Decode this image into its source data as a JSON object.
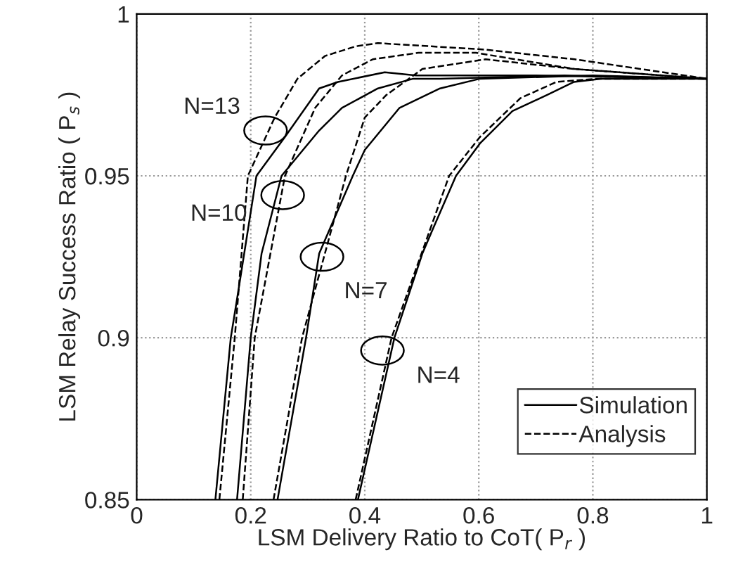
{
  "chart_data": {
    "type": "line",
    "xlabel": "LSM Delivery Ratio to CoT( P$_{r}$ )",
    "ylabel": "LSM Relay Success Ratio ( P$_{s}$ )",
    "xlim": [
      0,
      1
    ],
    "ylim": [
      0.85,
      1
    ],
    "xticks": [
      0,
      0.2,
      0.4,
      0.6,
      0.8,
      1
    ],
    "yticks": [
      0.85,
      0.9,
      0.95,
      1
    ],
    "grid": true,
    "legend": "bottom right",
    "marker": "none",
    "series": [
      {
        "name": "Simulation",
        "color": "#000000",
        "line_style": "solid",
        "x": [
          0.138,
          0.165,
          0.176,
          0.21,
          0.26,
          0.32,
          0.353,
          0.435,
          0.49,
          0.7,
          1.0
        ],
        "values": [
          0.85,
          0.9,
          0.912,
          0.95,
          0.962,
          0.977,
          0.979,
          0.982,
          0.981,
          0.981,
          0.98
        ]
      },
      {
        "name": "Analysis",
        "color": "#000000",
        "line_style": "dashed",
        "x": [
          0.145,
          0.172,
          0.195,
          0.242,
          0.282,
          0.33,
          0.384,
          0.423,
          0.61,
          0.768,
          1.0
        ],
        "values": [
          0.85,
          0.9,
          0.95,
          0.968,
          0.98,
          0.987,
          0.99,
          0.991,
          0.989,
          0.986,
          0.98
        ]
      },
      {
        "color": "#000000",
        "line_style": "solid",
        "x": [
          0.176,
          0.2,
          0.219,
          0.254,
          0.32,
          0.36,
          0.423,
          0.485,
          0.532,
          0.75,
          1.0
        ],
        "values": [
          0.85,
          0.9,
          0.926,
          0.95,
          0.964,
          0.971,
          0.977,
          0.98,
          0.98,
          0.981,
          0.98
        ]
      },
      {
        "color": "#000000",
        "line_style": "dashed",
        "x": [
          0.186,
          0.207,
          0.26,
          0.313,
          0.36,
          0.414,
          0.494,
          0.595,
          0.768,
          1.0
        ],
        "values": [
          0.85,
          0.9,
          0.95,
          0.971,
          0.981,
          0.986,
          0.988,
          0.988,
          0.983,
          0.98
        ]
      },
      {
        "color": "#000000",
        "line_style": "solid",
        "x": [
          0.247,
          0.297,
          0.32,
          0.379,
          0.4,
          0.461,
          0.532,
          0.602,
          0.8,
          1.0
        ],
        "values": [
          0.85,
          0.9,
          0.926,
          0.95,
          0.958,
          0.971,
          0.977,
          0.98,
          0.981,
          0.98
        ]
      },
      {
        "color": "#000000",
        "line_style": "dashed",
        "x": [
          0.24,
          0.29,
          0.367,
          0.4,
          0.438,
          0.501,
          0.612,
          0.768,
          1.0
        ],
        "values": [
          0.85,
          0.9,
          0.95,
          0.968,
          0.975,
          0.983,
          0.986,
          0.983,
          0.98
        ]
      },
      {
        "color": "#000000",
        "line_style": "solid",
        "x": [
          0.388,
          0.452,
          0.501,
          0.518,
          0.56,
          0.602,
          0.659,
          0.72,
          0.767,
          0.814,
          1.0
        ],
        "values": [
          0.85,
          0.9,
          0.926,
          0.933,
          0.95,
          0.96,
          0.97,
          0.975,
          0.979,
          0.98,
          0.98
        ]
      },
      {
        "color": "#000000",
        "line_style": "dashed",
        "x": [
          0.384,
          0.447,
          0.548,
          0.602,
          0.673,
          0.736,
          0.807,
          1.0
        ],
        "values": [
          0.85,
          0.9,
          0.95,
          0.962,
          0.974,
          0.979,
          0.98,
          0.98
        ]
      }
    ],
    "annotations": [
      "N=13",
      "N=10",
      "N=7",
      "N=4"
    ]
  }
}
